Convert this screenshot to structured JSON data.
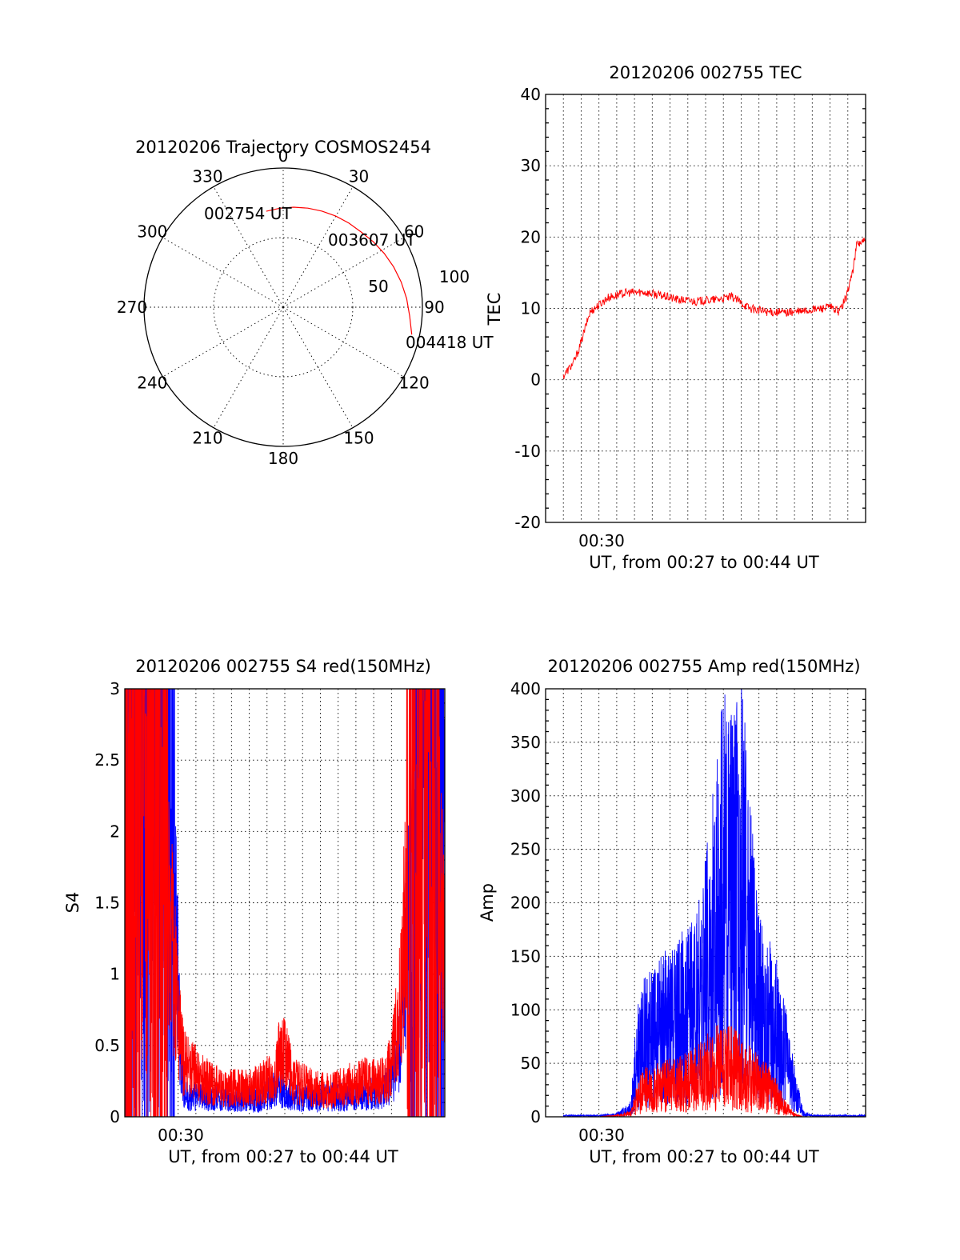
{
  "colors": {
    "red": "#ff0000",
    "blue": "#0000ff",
    "axis": "#000000"
  },
  "chart_data": [
    {
      "type": "polar",
      "title": "20120206 Trajectory COSMOS2454",
      "azimuth_labels": [
        "0",
        "30",
        "60",
        "90",
        "120",
        "150",
        "180",
        "210",
        "240",
        "270",
        "300",
        "330"
      ],
      "radial_labels": [
        "50",
        "100"
      ],
      "series": [
        {
          "color": "red",
          "points": [
            {
              "az": 350,
              "el": 27
            },
            {
              "az": 358,
              "el": 26
            },
            {
              "az": 6,
              "el": 25
            },
            {
              "az": 14,
              "el": 24
            },
            {
              "az": 22,
              "el": 23
            },
            {
              "az": 30,
              "el": 22
            },
            {
              "az": 38,
              "el": 21
            },
            {
              "az": 46,
              "el": 20
            },
            {
              "az": 54,
              "el": 18
            },
            {
              "az": 62,
              "el": 16
            },
            {
              "az": 70,
              "el": 14
            },
            {
              "az": 78,
              "el": 12
            },
            {
              "az": 86,
              "el": 10
            },
            {
              "az": 94,
              "el": 8
            },
            {
              "az": 102,
              "el": 5
            }
          ]
        }
      ],
      "annotations": [
        "002754 UT",
        "003607 UT",
        "004418 UT"
      ]
    },
    {
      "type": "line",
      "title": "20120206 002755 TEC",
      "ylabel": "TEC",
      "xlabel": "UT, from 00:27 to 00:44 UT",
      "xtick_labels": [
        "00:30"
      ],
      "xlim": [
        26.5,
        44.5
      ],
      "ylim": [
        -20,
        40
      ],
      "yticks": [
        -20,
        -10,
        0,
        10,
        20,
        30,
        40
      ],
      "grid": true,
      "series": [
        {
          "color": "red",
          "x": [
            27.5,
            27.8,
            28.1,
            28.4,
            28.7,
            29.0,
            29.5,
            30.0,
            31.0,
            32.0,
            33.0,
            34.0,
            35.0,
            36.0,
            37.0,
            38.0,
            39.0,
            40.0,
            41.0,
            42.0,
            42.5,
            43.0,
            43.4,
            43.8,
            44.0,
            44.5
          ],
          "y": [
            0.5,
            1.5,
            2.5,
            4.5,
            7.0,
            9.5,
            10.5,
            11.5,
            12.2,
            12.3,
            11.8,
            11.2,
            11.0,
            11.2,
            11.6,
            10.0,
            9.5,
            9.4,
            9.6,
            10.0,
            10.2,
            9.5,
            11.5,
            15.5,
            19.0,
            19.5
          ]
        }
      ]
    },
    {
      "type": "line",
      "title": "20120206 002755 S4 red(150MHz)",
      "ylabel": "S4",
      "xlabel": "UT, from 00:27 to 00:44 UT",
      "xtick_labels": [
        "00:30"
      ],
      "xlim": [
        26.5,
        44.5
      ],
      "ylim": [
        0,
        3
      ],
      "yticks": [
        0,
        0.5,
        1,
        1.5,
        2,
        2.5,
        3
      ],
      "ytick_labels": [
        "0",
        "0.5",
        "1",
        "1.5",
        "2",
        "2.5",
        "3"
      ],
      "grid": true,
      "series": [
        {
          "color": "blue",
          "x": [
            26.5,
            27.5,
            28.5,
            29.0,
            29.3,
            29.6,
            29.8,
            30.0,
            30.5,
            31.0,
            32.0,
            33.0,
            34.0,
            35.0,
            36.0,
            37.0,
            38.0,
            39.0,
            40.0,
            41.0,
            41.5,
            42.0,
            42.5,
            43.0,
            44.0,
            44.5
          ],
          "y": [
            3.0,
            3.0,
            3.0,
            2.5,
            1.5,
            0.6,
            0.2,
            0.15,
            0.14,
            0.13,
            0.13,
            0.12,
            0.12,
            0.2,
            0.14,
            0.12,
            0.14,
            0.14,
            0.15,
            0.18,
            0.25,
            0.5,
            1.5,
            2.5,
            2.3,
            2.5
          ]
        },
        {
          "color": "red",
          "x": [
            26.5,
            27.5,
            28.5,
            29.0,
            29.3,
            29.6,
            29.8,
            30.0,
            30.5,
            31.0,
            32.0,
            33.0,
            34.0,
            35.0,
            35.3,
            36.0,
            37.0,
            38.0,
            39.0,
            40.0,
            41.0,
            41.5,
            42.0,
            42.5,
            43.0,
            44.0,
            44.5
          ],
          "y": [
            2.0,
            2.5,
            2.0,
            1.4,
            1.0,
            0.55,
            0.4,
            0.35,
            0.3,
            0.25,
            0.2,
            0.2,
            0.22,
            0.3,
            0.5,
            0.25,
            0.2,
            0.18,
            0.22,
            0.25,
            0.25,
            0.35,
            0.8,
            1.8,
            2.2,
            1.8,
            1.2
          ]
        }
      ]
    },
    {
      "type": "line",
      "title": "20120206 002755 Amp red(150MHz)",
      "ylabel": "Amp",
      "xlabel": "UT, from 00:27 to 00:44 UT",
      "xtick_labels": [
        "00:30"
      ],
      "xlim": [
        26.5,
        44.5
      ],
      "ylim": [
        0,
        400
      ],
      "yticks": [
        0,
        50,
        100,
        150,
        200,
        250,
        300,
        350,
        400
      ],
      "grid": true,
      "series": [
        {
          "color": "blue",
          "x": [
            27.5,
            28.5,
            29.5,
            30.5,
            31.3,
            31.6,
            32.0,
            33.0,
            34.0,
            35.0,
            35.5,
            36.0,
            36.5,
            37.0,
            37.5,
            38.0,
            38.5,
            39.0,
            39.5,
            40.0,
            40.5,
            41.0,
            41.5,
            42.0,
            43.0,
            44.5
          ],
          "y": [
            1,
            1,
            1,
            2,
            8,
            50,
            70,
            80,
            90,
            100,
            130,
            170,
            210,
            200,
            220,
            160,
            100,
            90,
            80,
            55,
            25,
            3,
            1,
            1,
            1,
            1
          ]
        },
        {
          "color": "red",
          "x": [
            27.5,
            28.5,
            29.5,
            30.5,
            31.3,
            31.6,
            32.0,
            33.0,
            34.0,
            35.0,
            35.5,
            36.0,
            36.5,
            37.0,
            37.5,
            38.0,
            38.5,
            39.0,
            39.5,
            40.0,
            40.5,
            41.0,
            41.5,
            42.0,
            43.0,
            44.5
          ],
          "y": [
            0,
            0,
            0,
            1,
            3,
            15,
            25,
            28,
            30,
            35,
            40,
            45,
            48,
            45,
            40,
            35,
            30,
            28,
            18,
            8,
            2,
            0,
            0,
            0,
            0,
            0
          ]
        }
      ]
    }
  ]
}
